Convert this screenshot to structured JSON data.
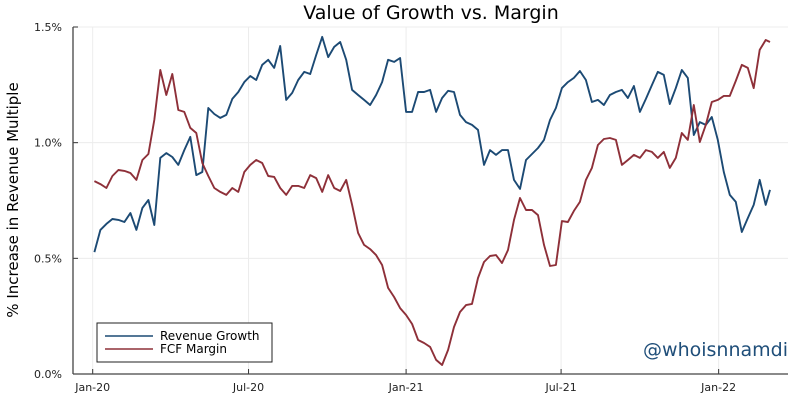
{
  "chart_data": {
    "type": "line",
    "title": "Value of Growth vs. Margin",
    "xlabel": "",
    "ylabel": "% Increase in Revenue Multiple",
    "xlim": [
      "2019-12-09",
      "2022-03-23"
    ],
    "ylim": [
      0,
      1.5
    ],
    "y_unit": "%",
    "grid": true,
    "legend_position": "bottom-left",
    "x_ticks": [
      {
        "date": "2020-01-01",
        "label": "Jan-20"
      },
      {
        "date": "2020-07-01",
        "label": "Jul-20"
      },
      {
        "date": "2021-01-01",
        "label": "Jan-21"
      },
      {
        "date": "2021-07-01",
        "label": "Jul-21"
      },
      {
        "date": "2022-01-01",
        "label": "Jan-22"
      }
    ],
    "y_ticks": [
      {
        "value": 0,
        "label": "0.0%"
      },
      {
        "value": 0.5,
        "label": "0.5%"
      },
      {
        "value": 1.0,
        "label": "1.0%"
      },
      {
        "value": 1.5,
        "label": "1.5%"
      }
    ],
    "annotation": "@whoisnnamdi",
    "annotation_color": "#1f4e79",
    "x": [
      "2020-01-03",
      "2020-01-10",
      "2020-01-17",
      "2020-01-24",
      "2020-01-31",
      "2020-02-07",
      "2020-02-14",
      "2020-02-21",
      "2020-02-28",
      "2020-03-06",
      "2020-03-13",
      "2020-03-20",
      "2020-03-27",
      "2020-04-03",
      "2020-04-10",
      "2020-04-17",
      "2020-04-24",
      "2020-05-01",
      "2020-05-08",
      "2020-05-15",
      "2020-05-22",
      "2020-05-29",
      "2020-06-05",
      "2020-06-12",
      "2020-06-19",
      "2020-06-26",
      "2020-07-03",
      "2020-07-10",
      "2020-07-17",
      "2020-07-24",
      "2020-07-31",
      "2020-08-07",
      "2020-08-14",
      "2020-08-21",
      "2020-08-28",
      "2020-09-04",
      "2020-09-11",
      "2020-09-18",
      "2020-09-25",
      "2020-10-02",
      "2020-10-09",
      "2020-10-16",
      "2020-10-23",
      "2020-10-30",
      "2020-11-06",
      "2020-11-13",
      "2020-11-20",
      "2020-11-27",
      "2020-12-04",
      "2020-12-11",
      "2020-12-18",
      "2020-12-25",
      "2021-01-01",
      "2021-01-08",
      "2021-01-15",
      "2021-01-22",
      "2021-01-29",
      "2021-02-05",
      "2021-02-12",
      "2021-02-19",
      "2021-02-26",
      "2021-03-05",
      "2021-03-12",
      "2021-03-19",
      "2021-03-26",
      "2021-04-02",
      "2021-04-09",
      "2021-04-16",
      "2021-04-23",
      "2021-04-30",
      "2021-05-07",
      "2021-05-14",
      "2021-05-21",
      "2021-05-28",
      "2021-06-04",
      "2021-06-11",
      "2021-06-18",
      "2021-06-25",
      "2021-07-02",
      "2021-07-09",
      "2021-07-16",
      "2021-07-23",
      "2021-07-30",
      "2021-08-06",
      "2021-08-13",
      "2021-08-20",
      "2021-08-27",
      "2021-09-03",
      "2021-09-10",
      "2021-09-17",
      "2021-09-24",
      "2021-10-01",
      "2021-10-08",
      "2021-10-15",
      "2021-10-22",
      "2021-10-29",
      "2021-11-05",
      "2021-11-12",
      "2021-11-19",
      "2021-11-26",
      "2021-12-03",
      "2021-12-10",
      "2021-12-17",
      "2021-12-24",
      "2021-12-31",
      "2022-01-07",
      "2022-01-14",
      "2022-01-21",
      "2022-01-28",
      "2022-02-04",
      "2022-02-11",
      "2022-02-18",
      "2022-02-25",
      "2022-03-02"
    ],
    "series": [
      {
        "name": "Revenue Growth",
        "color": "#1c4a74",
        "values": [
          0.527,
          0.623,
          0.649,
          0.67,
          0.666,
          0.657,
          0.696,
          0.623,
          0.718,
          0.752,
          0.644,
          0.934,
          0.955,
          0.938,
          0.904,
          0.968,
          1.025,
          0.86,
          0.873,
          1.15,
          1.124,
          1.107,
          1.12,
          1.189,
          1.219,
          1.262,
          1.288,
          1.271,
          1.336,
          1.358,
          1.323,
          1.418,
          1.185,
          1.215,
          1.271,
          1.306,
          1.297,
          1.379,
          1.457,
          1.37,
          1.414,
          1.435,
          1.358,
          1.228,
          1.206,
          1.185,
          1.163,
          1.206,
          1.262,
          1.358,
          1.349,
          1.366,
          1.133,
          1.133,
          1.219,
          1.219,
          1.228,
          1.133,
          1.193,
          1.224,
          1.219,
          1.12,
          1.089,
          1.077,
          1.055,
          0.904,
          0.968,
          0.947,
          0.968,
          0.968,
          0.839,
          0.8,
          0.925,
          0.951,
          0.977,
          1.012,
          1.098,
          1.15,
          1.236,
          1.262,
          1.28,
          1.31,
          1.271,
          1.176,
          1.185,
          1.163,
          1.206,
          1.219,
          1.228,
          1.193,
          1.245,
          1.133,
          1.189,
          1.249,
          1.306,
          1.293,
          1.167,
          1.236,
          1.314,
          1.28,
          1.033,
          1.089,
          1.077,
          1.111,
          1.012,
          0.873,
          0.774,
          0.744,
          0.614,
          0.674,
          0.731,
          0.839,
          0.731,
          0.796
        ]
      },
      {
        "name": "FCF Margin",
        "color": "#8e3039",
        "values": [
          0.834,
          0.821,
          0.804,
          0.856,
          0.882,
          0.878,
          0.869,
          0.839,
          0.925,
          0.951,
          1.098,
          1.314,
          1.206,
          1.297,
          1.141,
          1.133,
          1.064,
          1.042,
          0.912,
          0.856,
          0.804,
          0.787,
          0.774,
          0.804,
          0.787,
          0.873,
          0.904,
          0.925,
          0.912,
          0.856,
          0.852,
          0.804,
          0.774,
          0.813,
          0.813,
          0.804,
          0.86,
          0.847,
          0.787,
          0.86,
          0.804,
          0.791,
          0.839,
          0.731,
          0.61,
          0.558,
          0.54,
          0.514,
          0.471,
          0.372,
          0.333,
          0.285,
          0.255,
          0.216,
          0.147,
          0.134,
          0.117,
          0.061,
          0.039,
          0.104,
          0.203,
          0.268,
          0.298,
          0.303,
          0.415,
          0.484,
          0.51,
          0.514,
          0.48,
          0.536,
          0.666,
          0.761,
          0.709,
          0.709,
          0.687,
          0.558,
          0.467,
          0.471,
          0.661,
          0.657,
          0.705,
          0.744,
          0.839,
          0.891,
          0.99,
          1.016,
          1.02,
          1.012,
          0.904,
          0.925,
          0.947,
          0.934,
          0.968,
          0.96,
          0.934,
          0.96,
          0.891,
          0.934,
          1.042,
          1.012,
          1.163,
          1.003,
          1.077,
          1.176,
          1.185,
          1.202,
          1.202,
          1.267,
          1.336,
          1.323,
          1.236,
          1.401,
          1.444,
          1.435
        ]
      }
    ]
  }
}
